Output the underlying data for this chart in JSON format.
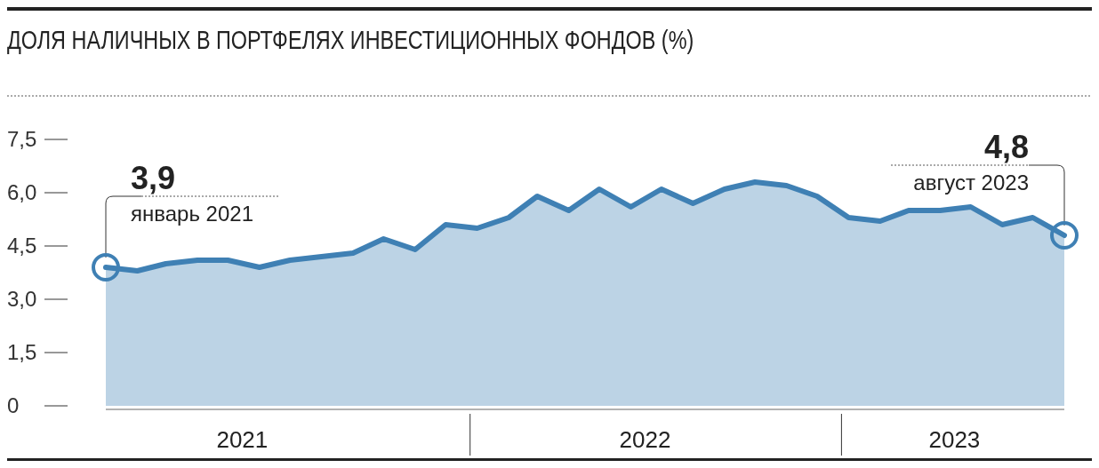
{
  "chart_data": {
    "type": "area",
    "title": "ДОЛЯ НАЛИЧНЫХ В ПОРТФЕЛЯХ ИНВЕСТИЦИОННЫХ ФОНДОВ (%)",
    "x": [
      "2021-01",
      "2021-02",
      "2021-03",
      "2021-04",
      "2021-05",
      "2021-06",
      "2021-07",
      "2021-08",
      "2021-09",
      "2021-10",
      "2021-11",
      "2021-12",
      "2022-01",
      "2022-02",
      "2022-03",
      "2022-04",
      "2022-05",
      "2022-06",
      "2022-07",
      "2022-08",
      "2022-09",
      "2022-10",
      "2022-11",
      "2022-12",
      "2023-01",
      "2023-02",
      "2023-03",
      "2023-04",
      "2023-05",
      "2023-06",
      "2023-07",
      "2023-08"
    ],
    "series": [
      {
        "color": "#3f80b4",
        "values": [
          3.9,
          3.8,
          4.0,
          4.1,
          4.1,
          3.9,
          4.1,
          4.2,
          4.3,
          4.7,
          4.4,
          5.1,
          5.0,
          5.3,
          5.9,
          5.5,
          6.1,
          5.6,
          6.1,
          5.7,
          6.1,
          6.3,
          6.2,
          5.9,
          5.3,
          5.2,
          5.5,
          5.5,
          5.6,
          5.1,
          5.3,
          4.8
        ]
      }
    ],
    "ylim": [
      0,
      7.5
    ],
    "yticks": [
      {
        "value": 0,
        "label": "0"
      },
      {
        "value": 1.5,
        "label": "1,5"
      },
      {
        "value": 3,
        "label": "3,0"
      },
      {
        "value": 4.5,
        "label": "4,5"
      },
      {
        "value": 6,
        "label": "6,0"
      },
      {
        "value": 7.5,
        "label": "7,5"
      }
    ],
    "xlim": [
      "2021-01",
      "2023-08"
    ],
    "xticks": [
      {
        "value": "2021-05-15",
        "label": "2021"
      },
      {
        "value": "2022-06-15",
        "label": "2022"
      },
      {
        "value": "2023-04-15",
        "label": "2023"
      }
    ],
    "marker": "none",
    "annotations": [
      {
        "text": "3,9",
        "x": "2021-01",
        "y": 3.9
      },
      {
        "text": "январь 2021",
        "x": "2021-01",
        "y": 3.9
      },
      {
        "text": "4,8",
        "x": "2023-08",
        "y": 4.8
      },
      {
        "text": "август 2023",
        "x": "2023-08",
        "y": 4.8
      }
    ]
  }
}
